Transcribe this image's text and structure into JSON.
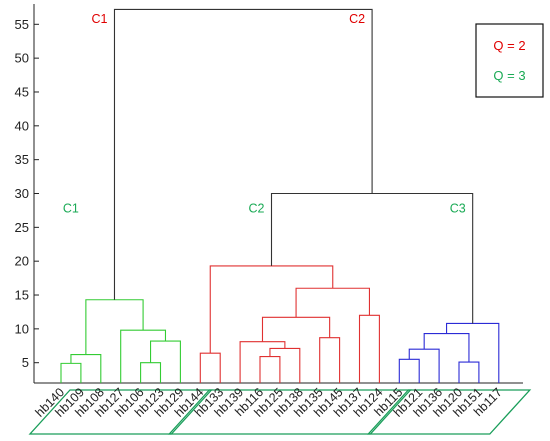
{
  "chart_data": {
    "type": "dendrogram",
    "ylim": [
      2,
      58
    ],
    "yticks": [
      5,
      10,
      15,
      20,
      25,
      30,
      35,
      40,
      45,
      50,
      55
    ],
    "leaves": [
      "hb140",
      "hb109",
      "hb108",
      "hb127",
      "hb106",
      "hb123",
      "hb129",
      "hb144",
      "hb133",
      "hb139",
      "hb116",
      "hb125",
      "hb138",
      "hb135",
      "hb145",
      "hb137",
      "hb124",
      "hb115",
      "hb121",
      "hb136",
      "hb120",
      "hb151",
      "hb117"
    ],
    "merges": [
      {
        "a": 0,
        "b": 1,
        "height": 4.9,
        "color": "#33cc33"
      },
      {
        "a": "m0",
        "b": 2,
        "height": 6.2,
        "color": "#33cc33"
      },
      {
        "a": 4,
        "b": 5,
        "height": 5.0,
        "color": "#33cc33"
      },
      {
        "a": "m2",
        "b": 6,
        "height": 8.2,
        "color": "#33cc33"
      },
      {
        "a": 3,
        "b": "m3",
        "height": 9.8,
        "color": "#33cc33"
      },
      {
        "a": "m1",
        "b": "m4",
        "height": 14.3,
        "color": "#33cc33"
      },
      {
        "a": 7,
        "b": 8,
        "height": 6.4,
        "color": "#e03131"
      },
      {
        "a": 10,
        "b": 11,
        "height": 5.9,
        "color": "#e03131"
      },
      {
        "a": "m7",
        "b": 12,
        "height": 7.1,
        "color": "#e03131"
      },
      {
        "a": 9,
        "b": "m8",
        "height": 8.1,
        "color": "#e03131"
      },
      {
        "a": 13,
        "b": 14,
        "height": 8.7,
        "color": "#e03131"
      },
      {
        "a": "m9",
        "b": "m10",
        "height": 11.7,
        "color": "#e03131"
      },
      {
        "a": 15,
        "b": 16,
        "height": 12.0,
        "color": "#e03131"
      },
      {
        "a": "m11",
        "b": "m12",
        "height": 16.0,
        "color": "#e03131"
      },
      {
        "a": "m6",
        "b": "m13",
        "height": 19.3,
        "color": "#e03131"
      },
      {
        "a": 17,
        "b": 18,
        "height": 5.5,
        "color": "#2b2bd6"
      },
      {
        "a": "m15",
        "b": 19,
        "height": 7.0,
        "color": "#2b2bd6"
      },
      {
        "a": 20,
        "b": 21,
        "height": 5.1,
        "color": "#2b2bd6"
      },
      {
        "a": "m16",
        "b": "m17",
        "height": 9.3,
        "color": "#2b2bd6"
      },
      {
        "a": "m18",
        "b": 22,
        "height": 10.8,
        "color": "#2b2bd6"
      },
      {
        "a": "m14",
        "b": "m19",
        "height": 30.0,
        "color": "#333333"
      },
      {
        "a": "m5",
        "b": "m20",
        "height": 57.2,
        "color": "#333333"
      }
    ],
    "cluster_labels": [
      {
        "text": "C1",
        "color": "#e00000",
        "side": "left",
        "node": "m21",
        "y": 55.2
      },
      {
        "text": "C2",
        "color": "#e00000",
        "side": "right",
        "node": "m21",
        "y": 55.2
      },
      {
        "text": "C1",
        "color": "#1aaa55",
        "side": "left",
        "node": "m5",
        "y": 27.2
      },
      {
        "text": "C2",
        "color": "#1aaa55",
        "side": "left",
        "node": "m20",
        "y": 27.2
      },
      {
        "text": "C3",
        "color": "#1aaa55",
        "side": "right",
        "node": "m20",
        "y": 27.2
      }
    ],
    "leaf_groups": [
      [
        0,
        6
      ],
      [
        7,
        16
      ],
      [
        17,
        22
      ]
    ],
    "leaf_group_color": "#1a9e5a",
    "legend": {
      "placement": "top-right",
      "items": [
        {
          "text": "Q = 2",
          "color": "#e00000"
        },
        {
          "text": "Q = 3",
          "color": "#1aaa55"
        }
      ]
    }
  }
}
